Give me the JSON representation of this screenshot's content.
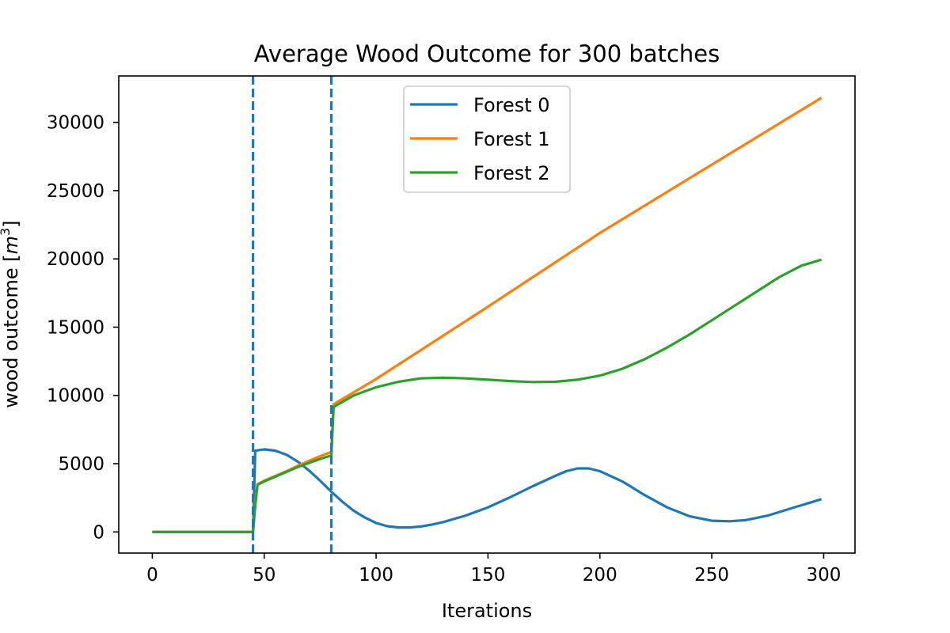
{
  "chart_data": {
    "type": "line",
    "title": "Average Wood Outcome for 300 batches",
    "xlabel": "Iterations",
    "ylabel": "wood outcome [m³]",
    "ylabel_parts": {
      "text": "wood outcome [",
      "var": "m",
      "exp": "3",
      "close": "]"
    },
    "xlim": [
      -15,
      314
    ],
    "ylim": [
      -1550,
      33400
    ],
    "xticks": [
      0,
      50,
      100,
      150,
      200,
      250,
      300
    ],
    "yticks": [
      0,
      5000,
      10000,
      15000,
      20000,
      25000,
      30000
    ],
    "grid": false,
    "legend_position": "upper center",
    "vlines": [
      {
        "x": 45,
        "color": "#1f77b4",
        "style": "dashed"
      },
      {
        "x": 80,
        "color": "#1f77b4",
        "style": "dashed"
      }
    ],
    "series": [
      {
        "name": "Forest 0",
        "color": "#1f77b4",
        "points": [
          [
            0,
            0
          ],
          [
            45,
            0
          ],
          [
            46,
            5950
          ],
          [
            50,
            6050
          ],
          [
            55,
            5950
          ],
          [
            60,
            5650
          ],
          [
            65,
            5150
          ],
          [
            70,
            4500
          ],
          [
            75,
            3750
          ],
          [
            80,
            2950
          ],
          [
            85,
            2200
          ],
          [
            90,
            1550
          ],
          [
            95,
            1050
          ],
          [
            100,
            650
          ],
          [
            105,
            420
          ],
          [
            110,
            330
          ],
          [
            115,
            330
          ],
          [
            120,
            400
          ],
          [
            125,
            540
          ],
          [
            130,
            720
          ],
          [
            140,
            1200
          ],
          [
            150,
            1800
          ],
          [
            160,
            2550
          ],
          [
            170,
            3350
          ],
          [
            180,
            4100
          ],
          [
            185,
            4450
          ],
          [
            190,
            4650
          ],
          [
            195,
            4650
          ],
          [
            200,
            4450
          ],
          [
            210,
            3700
          ],
          [
            220,
            2700
          ],
          [
            230,
            1800
          ],
          [
            240,
            1150
          ],
          [
            250,
            820
          ],
          [
            258,
            780
          ],
          [
            265,
            860
          ],
          [
            275,
            1200
          ],
          [
            285,
            1700
          ],
          [
            295,
            2200
          ],
          [
            299,
            2400
          ]
        ]
      },
      {
        "name": "Forest 1",
        "color": "#ff7f0e",
        "points": [
          [
            0,
            0
          ],
          [
            45,
            0
          ],
          [
            46,
            2200
          ],
          [
            47,
            3500
          ],
          [
            50,
            3750
          ],
          [
            55,
            4100
          ],
          [
            60,
            4450
          ],
          [
            65,
            4850
          ],
          [
            70,
            5200
          ],
          [
            75,
            5550
          ],
          [
            80,
            5850
          ],
          [
            81,
            9350
          ],
          [
            100,
            11200
          ],
          [
            150,
            16500
          ],
          [
            200,
            21900
          ],
          [
            250,
            26900
          ],
          [
            299,
            31800
          ]
        ]
      },
      {
        "name": "Forest 2",
        "color": "#2ca02c",
        "points": [
          [
            0,
            0
          ],
          [
            45,
            0
          ],
          [
            46,
            1900
          ],
          [
            47,
            3450
          ],
          [
            50,
            3700
          ],
          [
            55,
            4050
          ],
          [
            60,
            4400
          ],
          [
            65,
            4750
          ],
          [
            70,
            5050
          ],
          [
            75,
            5350
          ],
          [
            80,
            5600
          ],
          [
            81,
            9150
          ],
          [
            90,
            10000
          ],
          [
            100,
            10600
          ],
          [
            110,
            11000
          ],
          [
            120,
            11250
          ],
          [
            130,
            11300
          ],
          [
            140,
            11250
          ],
          [
            150,
            11150
          ],
          [
            160,
            11050
          ],
          [
            170,
            10980
          ],
          [
            180,
            11000
          ],
          [
            190,
            11150
          ],
          [
            200,
            11450
          ],
          [
            210,
            11950
          ],
          [
            220,
            12650
          ],
          [
            230,
            13500
          ],
          [
            240,
            14450
          ],
          [
            250,
            15500
          ],
          [
            260,
            16550
          ],
          [
            270,
            17600
          ],
          [
            280,
            18650
          ],
          [
            290,
            19500
          ],
          [
            299,
            19950
          ]
        ]
      }
    ]
  }
}
